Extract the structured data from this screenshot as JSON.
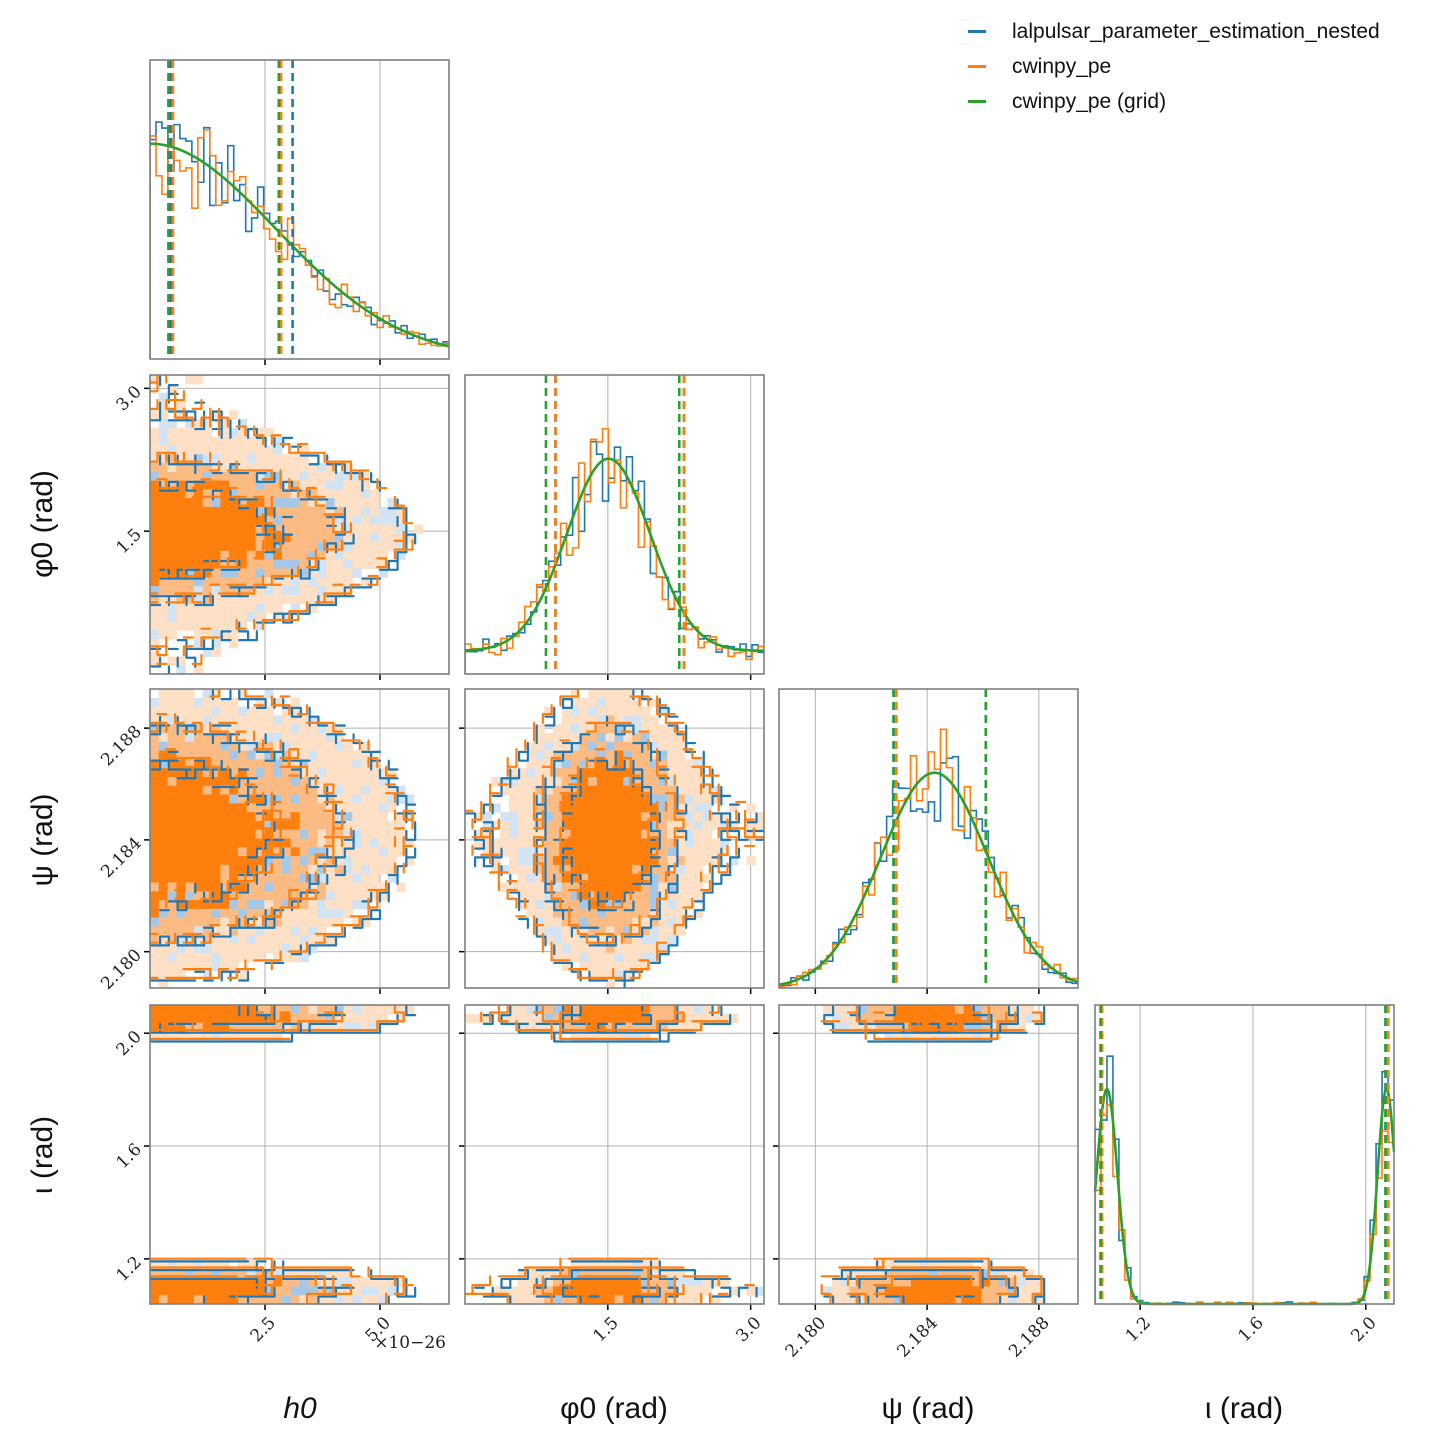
{
  "legend": [
    {
      "label": "lalpulsar_parameter_estimation_nested",
      "color": "#1f77b4"
    },
    {
      "label": "cwinpy_pe",
      "color": "#ff7f0e"
    },
    {
      "label": "cwinpy_pe (grid)",
      "color": "#2ca02c"
    }
  ],
  "colors": {
    "blue": "#1f77b4",
    "orange": "#ff7f0e",
    "green": "#2ca02c",
    "frame": "#7f7f7f",
    "grid": "#b0b0b0"
  },
  "chart_data": {
    "type": "corner",
    "parameters": [
      {
        "name": "h0",
        "label": "h0",
        "range": [
          0.0,
          6.5
        ],
        "ticks": [
          "2.5",
          "5.0"
        ],
        "tick_values": [
          2.5,
          5.0
        ],
        "offset_text": "×10−26"
      },
      {
        "name": "phi0",
        "label": "φ0 (rad)",
        "range": [
          0.0,
          3.14
        ],
        "ticks": [
          "1.5",
          "3.0"
        ],
        "tick_values": [
          1.5,
          3.0
        ]
      },
      {
        "name": "psi",
        "label": "ψ (rad)",
        "range": [
          2.1787,
          2.1894
        ],
        "ticks": [
          "2.180",
          "2.184",
          "2.188"
        ],
        "tick_values": [
          2.18,
          2.184,
          2.188
        ]
      },
      {
        "name": "iota",
        "label": "ι (rad)",
        "range": [
          1.04,
          2.1
        ],
        "ticks": [
          "1.2",
          "1.6",
          "2.0"
        ],
        "tick_values": [
          1.2,
          1.6,
          2.0
        ]
      }
    ],
    "marginals": [
      {
        "param": "h0",
        "quantiles": {
          "lalpulsar_parameter_estimation_nested": [
            0.45,
            3.1
          ],
          "cwinpy_pe": [
            0.5,
            2.85
          ],
          "cwinpy_pe (grid)": [
            0.4,
            2.8
          ]
        }
      },
      {
        "param": "phi0",
        "quantiles": {
          "lalpulsar_parameter_estimation_nested": [
            0.95,
            2.3
          ],
          "cwinpy_pe": [
            0.95,
            2.3
          ],
          "cwinpy_pe (grid)": [
            0.85,
            2.25
          ]
        }
      },
      {
        "param": "psi",
        "quantiles": {
          "lalpulsar_parameter_estimation_nested": [
            2.1828,
            2.1861
          ],
          "cwinpy_pe": [
            2.1829,
            2.1861
          ],
          "cwinpy_pe (grid)": [
            2.1828,
            2.1861
          ]
        }
      },
      {
        "param": "iota",
        "quantiles": {
          "lalpulsar_parameter_estimation_nested": [
            1.06,
            2.07
          ],
          "cwinpy_pe": [
            1.065,
            2.08
          ],
          "cwinpy_pe (grid)": [
            1.06,
            2.07
          ]
        }
      }
    ],
    "joint_panels": [
      {
        "x": "h0",
        "y": "phi0"
      },
      {
        "x": "h0",
        "y": "psi"
      },
      {
        "x": "phi0",
        "y": "psi"
      },
      {
        "x": "h0",
        "y": "iota"
      },
      {
        "x": "phi0",
        "y": "iota"
      },
      {
        "x": "psi",
        "y": "iota"
      }
    ]
  }
}
